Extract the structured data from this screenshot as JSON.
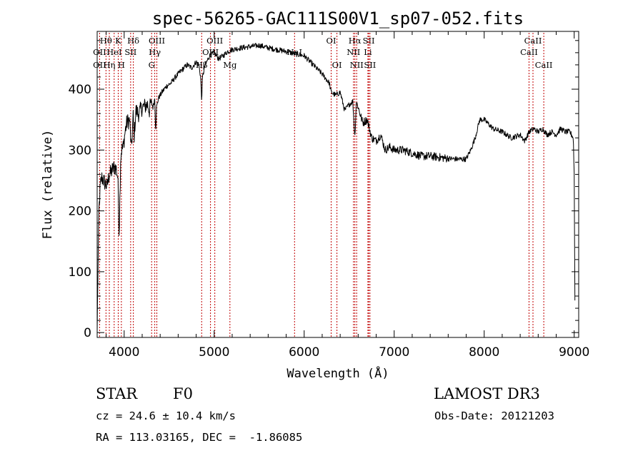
{
  "chart_data": {
    "type": "line",
    "title": "spec-56265-GAC111S00V1_sp07-052.fits",
    "xlabel": "Wavelength (Å)",
    "ylabel": "Flux (relative)",
    "xlim": [
      3700,
      9050
    ],
    "ylim": [
      -8,
      495
    ],
    "x_ticks": [
      4000,
      5000,
      6000,
      7000,
      8000,
      9000
    ],
    "y_ticks": [
      0,
      100,
      200,
      300,
      400
    ],
    "grid": false,
    "spectrum_anchor_points": {
      "x": [
        3700,
        3705,
        3712,
        3720,
        3735,
        3750,
        3770,
        3790,
        3810,
        3830,
        3850,
        3870,
        3890,
        3910,
        3930,
        3945,
        3960,
        3970,
        3990,
        4010,
        4030,
        4060,
        4080,
        4100,
        4110,
        4130,
        4160,
        4200,
        4230,
        4260,
        4280,
        4300,
        4320,
        4340,
        4350,
        4360,
        4380,
        4420,
        4470,
        4520,
        4570,
        4630,
        4700,
        4750,
        4800,
        4830,
        4850,
        4861,
        4870,
        4900,
        4950,
        5000,
        5050,
        5100,
        5150,
        5200,
        5300,
        5400,
        5500,
        5600,
        5700,
        5800,
        5900,
        6000,
        6100,
        6200,
        6280,
        6300,
        6350,
        6400,
        6450,
        6500,
        6540,
        6563,
        6580,
        6600,
        6650,
        6700,
        6750,
        6800,
        6850,
        6900,
        6950,
        7000,
        7100,
        7200,
        7300,
        7400,
        7500,
        7600,
        7700,
        7800,
        7850,
        7900,
        7950,
        8000,
        8100,
        8200,
        8300,
        8400,
        8450,
        8500,
        8550,
        8600,
        8650,
        8700,
        8750,
        8800,
        8850,
        8900,
        8950,
        8990,
        9000,
        9010
      ],
      "y": [
        0,
        60,
        130,
        200,
        240,
        255,
        250,
        245,
        240,
        258,
        262,
        268,
        272,
        270,
        255,
        160,
        285,
        300,
        305,
        330,
        345,
        350,
        300,
        355,
        320,
        365,
        360,
        370,
        372,
        375,
        365,
        380,
        370,
        385,
        330,
        370,
        385,
        395,
        405,
        410,
        420,
        430,
        440,
        435,
        445,
        440,
        420,
        380,
        420,
        440,
        455,
        460,
        450,
        455,
        462,
        465,
        468,
        470,
        472,
        468,
        465,
        462,
        458,
        455,
        440,
        425,
        410,
        395,
        390,
        395,
        365,
        375,
        380,
        320,
        380,
        370,
        345,
        350,
        320,
        315,
        325,
        300,
        305,
        300,
        300,
        295,
        290,
        290,
        288,
        286,
        285,
        285,
        300,
        320,
        350,
        350,
        335,
        330,
        320,
        325,
        315,
        330,
        335,
        330,
        335,
        325,
        330,
        325,
        335,
        330,
        330,
        320,
        260,
        0
      ]
    },
    "spectral_lines": {
      "row1": [
        {
          "label": "Hθ",
          "x": 3798
        },
        {
          "label": "K",
          "x": 3934
        },
        {
          "label": "Hδ",
          "x": 4102
        },
        {
          "label": "OIII",
          "x": 4363
        },
        {
          "label": "OIII",
          "x": 5007
        },
        {
          "label": "OI",
          "x": 6300
        },
        {
          "label": "Hα",
          "x": 6563
        },
        {
          "label": "SII",
          "x": 6717
        },
        {
          "label": "CaII",
          "x": 8542
        }
      ],
      "row2": [
        {
          "label": "OII",
          "x": 3727
        },
        {
          "label": "HeI",
          "x": 3889
        },
        {
          "label": "SII",
          "x": 4072
        },
        {
          "label": "Hγ",
          "x": 4340
        },
        {
          "label": "OIII",
          "x": 4959
        },
        {
          "label": "NaI",
          "x": 5893
        },
        {
          "label": "NII",
          "x": 6548
        },
        {
          "label": "Li",
          "x": 6708
        },
        {
          "label": "CaII",
          "x": 8498
        }
      ],
      "row3": [
        {
          "label": "OII",
          "x": 3727
        },
        {
          "label": "Hη",
          "x": 3835
        },
        {
          "label": "H",
          "x": 3969
        },
        {
          "label": "G",
          "x": 4305
        },
        {
          "label": "Hβ",
          "x": 4861
        },
        {
          "label": "Mg",
          "x": 5175
        },
        {
          "label": "OI",
          "x": 6364
        },
        {
          "label": "NII",
          "x": 6583
        },
        {
          "label": "SII",
          "x": 6731
        },
        {
          "label": "CaII",
          "x": 8662
        }
      ]
    }
  },
  "info": {
    "class": "STAR",
    "subclass": "F0",
    "survey": "LAMOST DR3",
    "cz": "cz = 24.6 ± 10.4 km/s",
    "obs_date": "Obs-Date: 20121203",
    "radec": "RA = 113.03165, DEC =  -1.86085"
  },
  "colors": {
    "line_marker": "#c00000",
    "spectrum": "#000000",
    "axis": "#000000"
  }
}
